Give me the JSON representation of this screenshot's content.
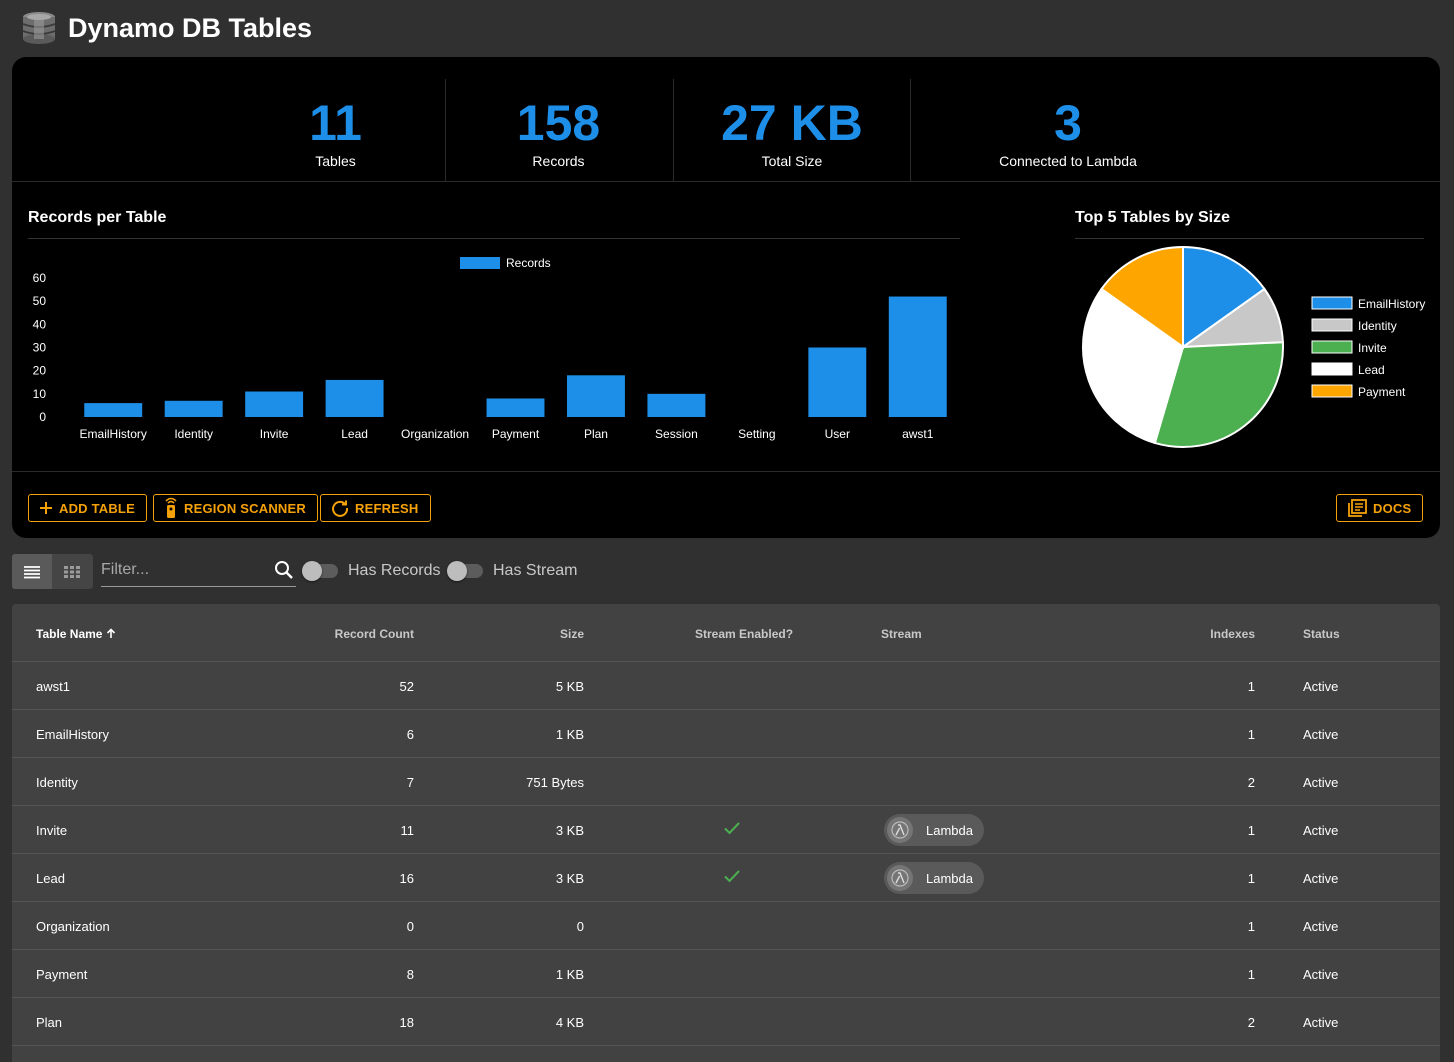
{
  "app": {
    "title": "Dynamo DB Tables"
  },
  "stats": [
    {
      "value": "11",
      "label": "Tables"
    },
    {
      "value": "158",
      "label": "Records"
    },
    {
      "value": "27 KB",
      "label": "Total Size"
    },
    {
      "value": "3",
      "label": "Connected to Lambda"
    }
  ],
  "bar_card": {
    "title": "Records per Table"
  },
  "pie_card": {
    "title": "Top 5 Tables by Size"
  },
  "chart_data": [
    {
      "type": "bar",
      "title": "Records per Table",
      "categories": [
        "EmailHistory",
        "Identity",
        "Invite",
        "Lead",
        "Organization",
        "Payment",
        "Plan",
        "Session",
        "Setting",
        "User",
        "awst1"
      ],
      "series": [
        {
          "name": "Records",
          "values": [
            6,
            7,
            11,
            16,
            0,
            8,
            18,
            10,
            0,
            30,
            52
          ],
          "color": "#1e8fe8"
        }
      ],
      "yticks": [
        "0",
        "10",
        "20",
        "30",
        "40",
        "50",
        "60"
      ],
      "ylim": [
        0,
        60
      ],
      "legend": "top-center",
      "grid": false
    },
    {
      "type": "pie",
      "title": "Top 5 Tables by Size",
      "labels": [
        "EmailHistory",
        "Identity",
        "Invite",
        "Lead",
        "Payment"
      ],
      "values": [
        5,
        3,
        10,
        10,
        5
      ],
      "colors": [
        "#1e8fe8",
        "#c8c8c8",
        "#4caf50",
        "#ffffff",
        "#ffa500"
      ],
      "legend": "right"
    }
  ],
  "buttons": {
    "add_table": "ADD TABLE",
    "region_scanner": "REGION SCANNER",
    "refresh": "REFRESH",
    "docs": "DOCS"
  },
  "toolbar": {
    "filter_placeholder": "Filter...",
    "has_records": "Has Records",
    "has_stream": "Has Stream"
  },
  "table": {
    "columns": {
      "name": "Table Name",
      "record_count": "Record Count",
      "size": "Size",
      "stream_enabled": "Stream Enabled?",
      "stream": "Stream",
      "indexes": "Indexes",
      "status": "Status"
    },
    "rows": [
      {
        "name": "awst1",
        "records": "52",
        "size": "5 KB",
        "stream_enabled": false,
        "stream": "",
        "indexes": "1",
        "status": "Active"
      },
      {
        "name": "EmailHistory",
        "records": "6",
        "size": "1 KB",
        "stream_enabled": false,
        "stream": "",
        "indexes": "1",
        "status": "Active"
      },
      {
        "name": "Identity",
        "records": "7",
        "size": "751 Bytes",
        "stream_enabled": false,
        "stream": "",
        "indexes": "2",
        "status": "Active"
      },
      {
        "name": "Invite",
        "records": "11",
        "size": "3 KB",
        "stream_enabled": true,
        "stream": "Lambda",
        "indexes": "1",
        "status": "Active"
      },
      {
        "name": "Lead",
        "records": "16",
        "size": "3 KB",
        "stream_enabled": true,
        "stream": "Lambda",
        "indexes": "1",
        "status": "Active"
      },
      {
        "name": "Organization",
        "records": "0",
        "size": "0",
        "stream_enabled": false,
        "stream": "",
        "indexes": "1",
        "status": "Active"
      },
      {
        "name": "Payment",
        "records": "8",
        "size": "1 KB",
        "stream_enabled": false,
        "stream": "",
        "indexes": "1",
        "status": "Active"
      },
      {
        "name": "Plan",
        "records": "18",
        "size": "4 KB",
        "stream_enabled": false,
        "stream": "",
        "indexes": "2",
        "status": "Active"
      }
    ]
  },
  "colors": {
    "accent": "#1e8fe8",
    "button": "#f5a10a",
    "success": "#4caf50"
  }
}
